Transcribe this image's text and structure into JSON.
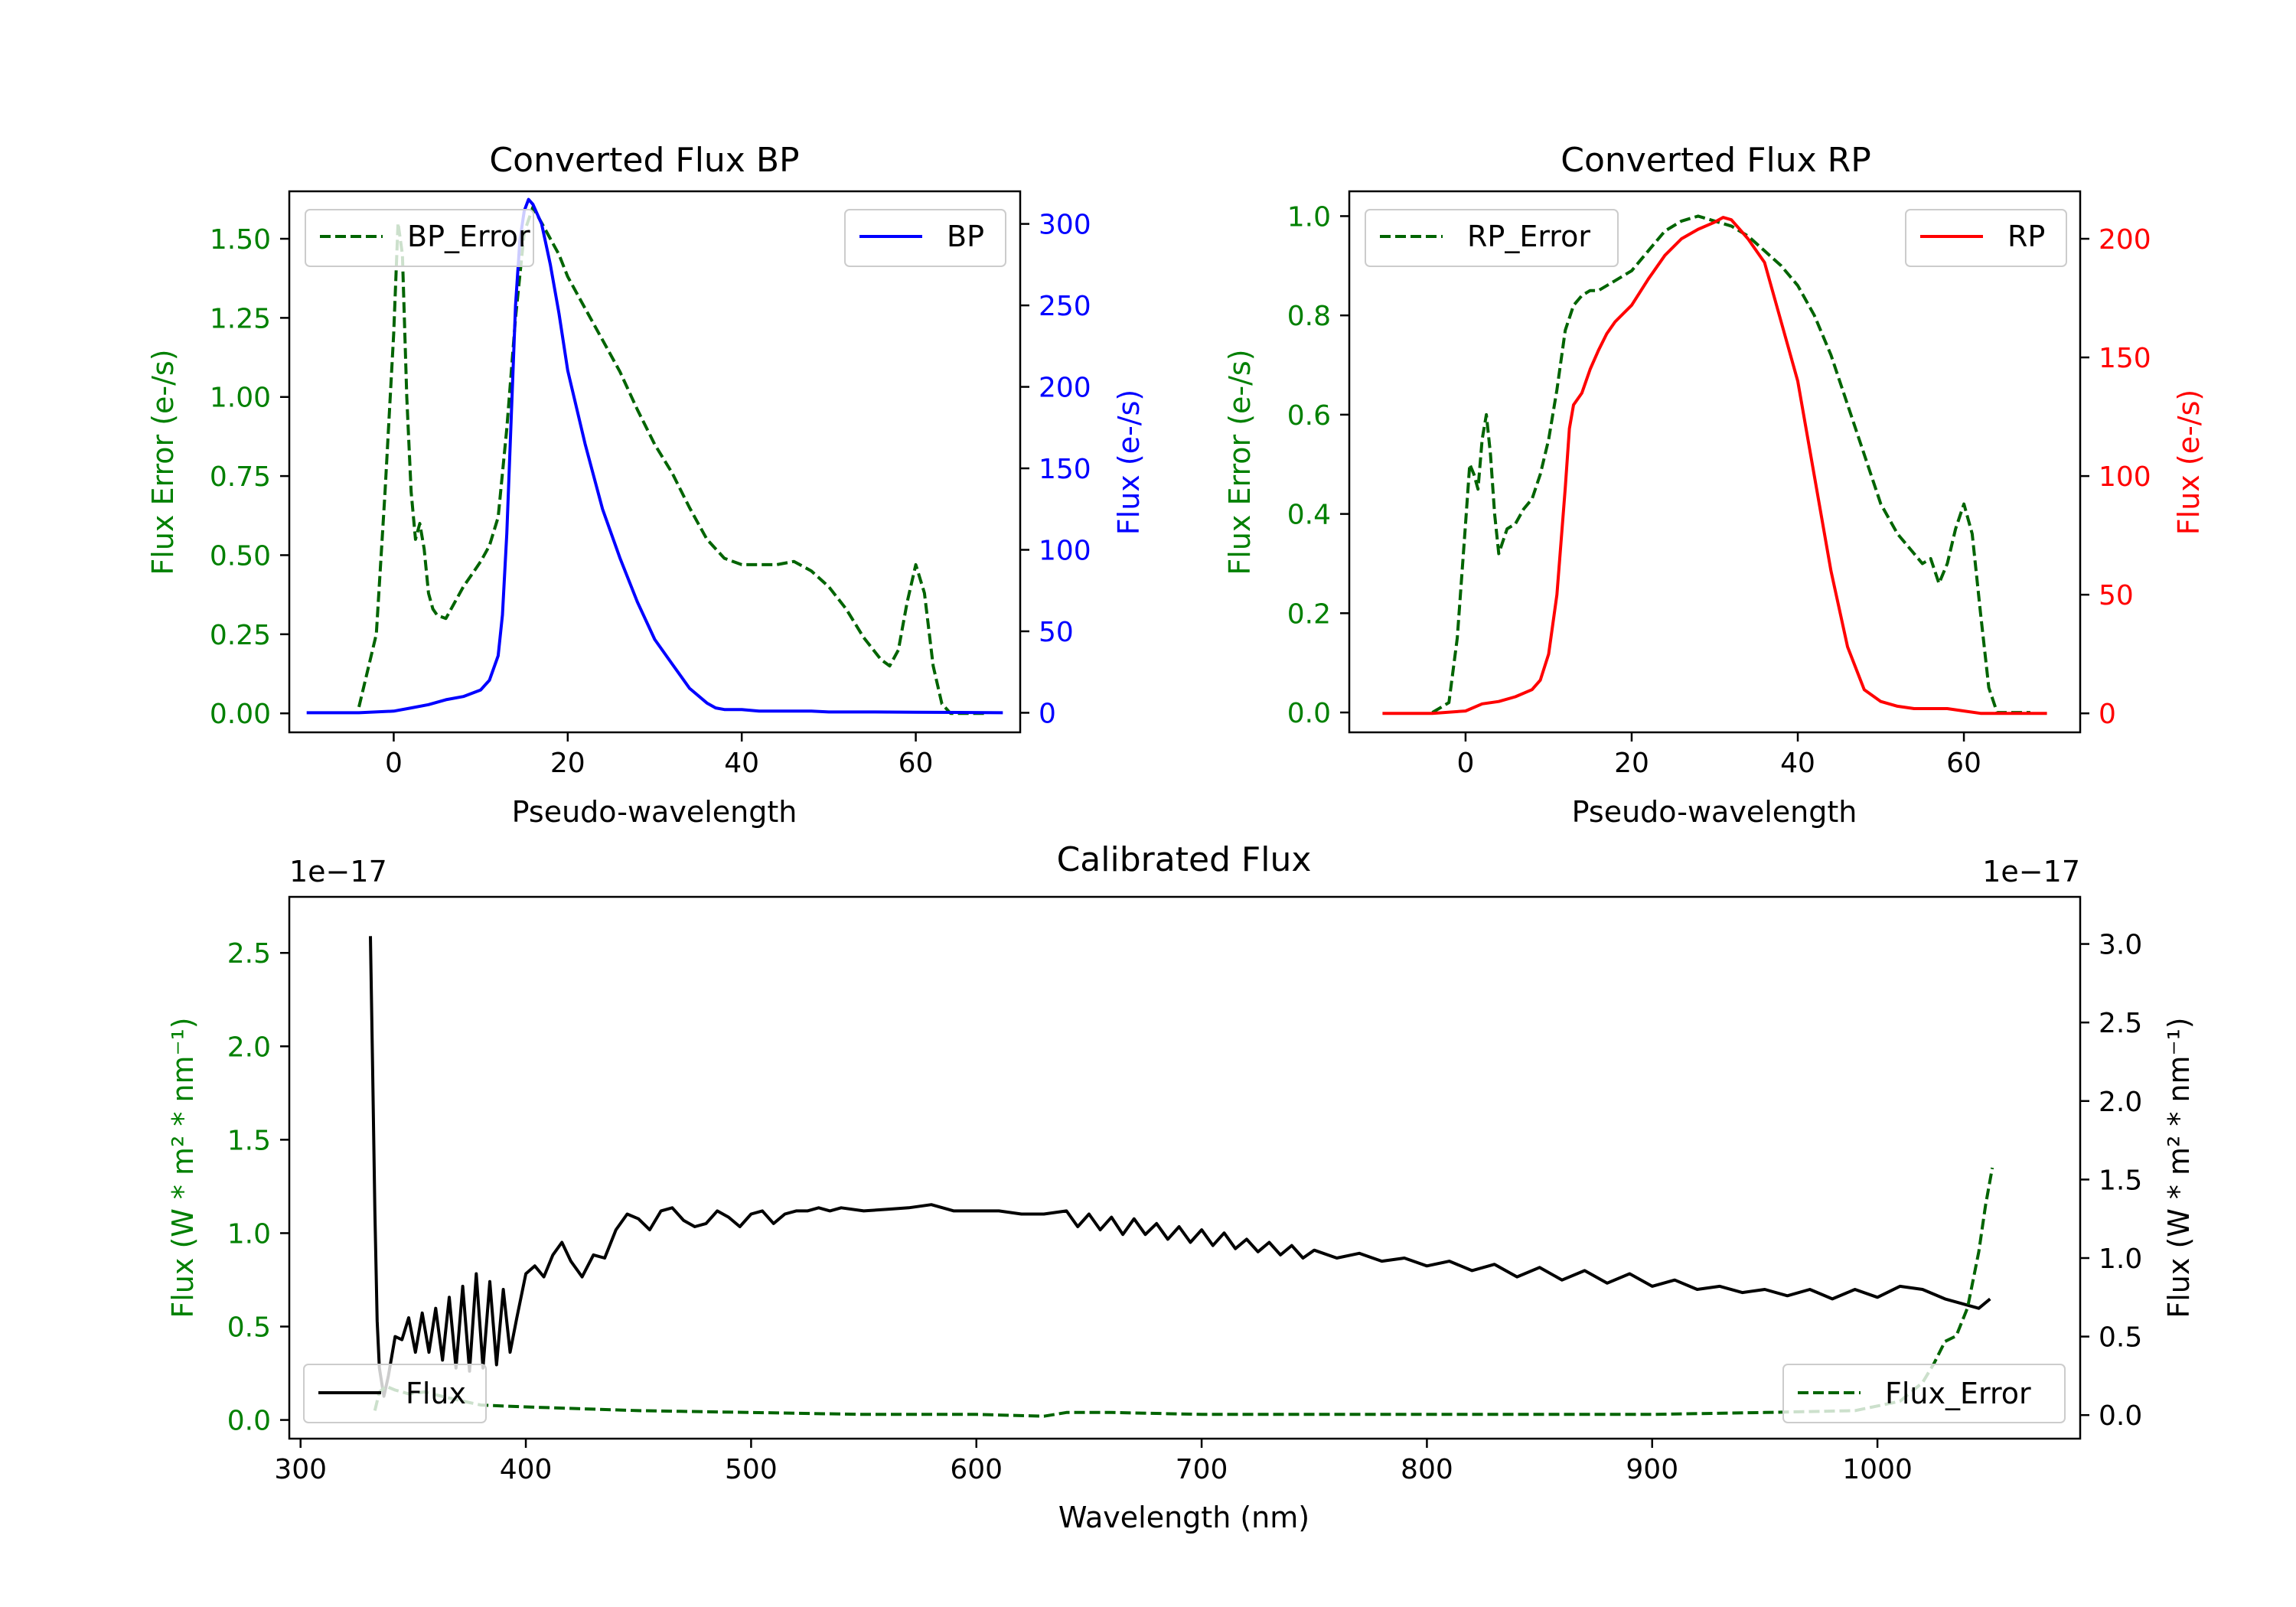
{
  "chart_data": [
    {
      "id": "bp",
      "type": "line",
      "title": "Converted Flux BP",
      "xlabel": "Pseudo-wavelength",
      "ylabel_left": "Flux Error (e-/s)",
      "ylabel_right": "Flux (e-/s)",
      "xlim": [
        -12,
        72
      ],
      "ylim_left": [
        -0.06,
        1.65
      ],
      "ylim_right": [
        -12,
        320
      ],
      "xticks": [
        "0",
        "20",
        "40",
        "60"
      ],
      "xtick_values": [
        0,
        20,
        40,
        60
      ],
      "yticks_left": [
        "0.00",
        "0.25",
        "0.50",
        "0.75",
        "1.00",
        "1.25",
        "1.50"
      ],
      "yticks_left_values": [
        0,
        0.25,
        0.5,
        0.75,
        1.0,
        1.25,
        1.5
      ],
      "yticks_right": [
        "0",
        "50",
        "100",
        "150",
        "200",
        "250",
        "300"
      ],
      "yticks_right_values": [
        0,
        50,
        100,
        150,
        200,
        250,
        300
      ],
      "colors": {
        "left_axis": "#008000",
        "right_axis": "#0000ff"
      },
      "legend_left": {
        "label": "BP_Error",
        "position": "upper left"
      },
      "legend_right": {
        "label": "BP",
        "position": "upper right"
      },
      "series": [
        {
          "name": "BP_Error",
          "axis": "left",
          "color": "#006400",
          "dash": true,
          "x": [
            -4,
            -2,
            -1,
            0,
            0.5,
            1,
            1.5,
            2,
            2.5,
            3,
            3.5,
            4,
            4.5,
            5,
            6,
            7,
            8,
            9,
            10,
            11,
            12,
            13,
            14,
            15,
            16,
            17,
            18,
            19,
            20,
            22,
            24,
            26,
            28,
            30,
            32,
            34,
            36,
            38,
            40,
            42,
            44,
            46,
            48,
            50,
            52,
            54,
            56,
            57,
            58,
            59,
            60,
            61,
            62,
            63,
            64,
            66,
            68
          ],
          "y": [
            0.02,
            0.25,
            0.7,
            1.2,
            1.55,
            1.45,
            1.0,
            0.7,
            0.55,
            0.6,
            0.52,
            0.38,
            0.33,
            0.31,
            0.3,
            0.35,
            0.4,
            0.44,
            0.48,
            0.53,
            0.62,
            0.9,
            1.25,
            1.52,
            1.6,
            1.55,
            1.5,
            1.45,
            1.38,
            1.28,
            1.18,
            1.08,
            0.96,
            0.85,
            0.76,
            0.65,
            0.55,
            0.49,
            0.47,
            0.47,
            0.47,
            0.48,
            0.45,
            0.4,
            0.33,
            0.24,
            0.17,
            0.15,
            0.2,
            0.35,
            0.47,
            0.38,
            0.15,
            0.03,
            0.0,
            0.0,
            0.0
          ]
        },
        {
          "name": "BP",
          "axis": "right",
          "color": "#0000ff",
          "dash": false,
          "x": [
            -10,
            -4,
            0,
            2,
            4,
            6,
            8,
            10,
            11,
            12,
            12.5,
            13,
            13.5,
            14,
            14.5,
            15,
            15.5,
            16,
            17,
            18,
            19,
            20,
            22,
            24,
            26,
            28,
            30,
            32,
            34,
            36,
            37,
            38,
            40,
            42,
            44,
            46,
            48,
            50,
            55,
            60,
            65,
            70
          ],
          "y": [
            0,
            0,
            1,
            3,
            5,
            8,
            10,
            14,
            20,
            35,
            60,
            110,
            180,
            250,
            290,
            308,
            315,
            312,
            300,
            275,
            245,
            210,
            165,
            125,
            95,
            68,
            45,
            30,
            15,
            6,
            3,
            2,
            2,
            1,
            1,
            1,
            1,
            0.5,
            0.5,
            0.3,
            0.2,
            0
          ]
        }
      ]
    },
    {
      "id": "rp",
      "type": "line",
      "title": "Converted Flux RP",
      "xlabel": "Pseudo-wavelength",
      "ylabel_left": "Flux Error (e-/s)",
      "ylabel_right": "Flux (e-/s)",
      "xlim": [
        -14,
        74
      ],
      "ylim_left": [
        -0.04,
        1.05
      ],
      "ylim_right": [
        -8,
        220
      ],
      "xticks": [
        "0",
        "20",
        "40",
        "60"
      ],
      "xtick_values": [
        0,
        20,
        40,
        60
      ],
      "yticks_left": [
        "0.0",
        "0.2",
        "0.4",
        "0.6",
        "0.8",
        "1.0"
      ],
      "yticks_left_values": [
        0,
        0.2,
        0.4,
        0.6,
        0.8,
        1.0
      ],
      "yticks_right": [
        "0",
        "50",
        "100",
        "150",
        "200"
      ],
      "yticks_right_values": [
        0,
        50,
        100,
        150,
        200
      ],
      "colors": {
        "left_axis": "#008000",
        "right_axis": "#ff0000"
      },
      "legend_left": {
        "label": "RP_Error",
        "position": "upper left"
      },
      "legend_right": {
        "label": "RP",
        "position": "upper right"
      },
      "series": [
        {
          "name": "RP_Error",
          "axis": "left",
          "color": "#006400",
          "dash": true,
          "x": [
            -4,
            -2,
            -1,
            0,
            0.5,
            1,
            1.5,
            2,
            2.5,
            3,
            3.5,
            4,
            5,
            6,
            7,
            8,
            9,
            10,
            11,
            12,
            13,
            14,
            15,
            16,
            18,
            20,
            22,
            24,
            26,
            28,
            30,
            32,
            34,
            36,
            38,
            40,
            42,
            44,
            46,
            48,
            50,
            52,
            54,
            55,
            56,
            57,
            58,
            59,
            60,
            61,
            62,
            63,
            64,
            66,
            68
          ],
          "y": [
            0.0,
            0.02,
            0.15,
            0.38,
            0.5,
            0.48,
            0.45,
            0.55,
            0.6,
            0.52,
            0.4,
            0.32,
            0.37,
            0.38,
            0.41,
            0.43,
            0.48,
            0.55,
            0.65,
            0.77,
            0.82,
            0.84,
            0.85,
            0.85,
            0.87,
            0.89,
            0.93,
            0.97,
            0.99,
            1.0,
            0.99,
            0.98,
            0.96,
            0.93,
            0.9,
            0.86,
            0.8,
            0.72,
            0.62,
            0.52,
            0.42,
            0.36,
            0.32,
            0.3,
            0.31,
            0.26,
            0.3,
            0.37,
            0.42,
            0.36,
            0.2,
            0.05,
            0.0,
            0.0,
            0.0
          ]
        },
        {
          "name": "RP",
          "axis": "right",
          "color": "#ff0000",
          "dash": false,
          "x": [
            -10,
            -4,
            0,
            2,
            4,
            6,
            8,
            9,
            10,
            11,
            12,
            12.5,
            13,
            14,
            15,
            16,
            17,
            18,
            20,
            22,
            24,
            26,
            28,
            30,
            31,
            32,
            33,
            34,
            36,
            38,
            40,
            42,
            44,
            46,
            48,
            50,
            52,
            54,
            56,
            58,
            60,
            62,
            65,
            70
          ],
          "y": [
            0,
            0,
            1,
            4,
            5,
            7,
            10,
            14,
            25,
            50,
            95,
            120,
            130,
            135,
            145,
            153,
            160,
            165,
            172,
            183,
            193,
            200,
            204,
            207,
            209,
            208,
            204,
            200,
            190,
            165,
            140,
            100,
            60,
            28,
            10,
            5,
            3,
            2,
            2,
            2,
            1,
            0,
            0,
            0
          ]
        }
      ]
    },
    {
      "id": "cal",
      "type": "line",
      "title": "Calibrated Flux",
      "xlabel": "Wavelength (nm)",
      "ylabel_left": "Flux (W * m² * nm⁻¹)",
      "ylabel_right": "Flux (W * m² * nm⁻¹)",
      "offset_left": "1e−17",
      "offset_right": "1e−17",
      "xlim": [
        295,
        1090
      ],
      "ylim_left": [
        -0.1,
        2.8
      ],
      "ylim_right": [
        -0.15,
        3.3
      ],
      "xticks": [
        "300",
        "400",
        "500",
        "600",
        "700",
        "800",
        "900",
        "1000"
      ],
      "xtick_values": [
        300,
        400,
        500,
        600,
        700,
        800,
        900,
        1000
      ],
      "yticks_left": [
        "0.0",
        "0.5",
        "1.0",
        "1.5",
        "2.0",
        "2.5"
      ],
      "yticks_left_values": [
        0,
        0.5,
        1.0,
        1.5,
        2.0,
        2.5
      ],
      "yticks_right": [
        "0.0",
        "0.5",
        "1.0",
        "1.5",
        "2.0",
        "2.5",
        "3.0"
      ],
      "yticks_right_values": [
        0,
        0.5,
        1.0,
        1.5,
        2.0,
        2.5,
        3.0
      ],
      "colors": {
        "left_axis": "#008000",
        "right_axis": "#000000"
      },
      "legend_left": {
        "label": "Flux",
        "position": "lower left"
      },
      "legend_right": {
        "label": "Flux_Error",
        "position": "lower right"
      },
      "series": [
        {
          "name": "Flux",
          "axis": "right",
          "color": "#000000",
          "dash": false,
          "x": [
            331,
            332,
            333,
            334,
            335,
            337,
            339,
            342,
            345,
            348,
            351,
            354,
            357,
            360,
            363,
            366,
            369,
            372,
            375,
            378,
            381,
            384,
            387,
            390,
            393,
            396,
            400,
            404,
            408,
            412,
            416,
            420,
            425,
            430,
            435,
            440,
            445,
            450,
            455,
            460,
            465,
            470,
            475,
            480,
            485,
            490,
            495,
            500,
            505,
            510,
            515,
            520,
            525,
            530,
            535,
            540,
            550,
            560,
            570,
            580,
            590,
            600,
            610,
            620,
            630,
            640,
            645,
            650,
            655,
            660,
            665,
            670,
            675,
            680,
            685,
            690,
            695,
            700,
            705,
            710,
            715,
            720,
            725,
            730,
            735,
            740,
            745,
            750,
            760,
            770,
            780,
            790,
            800,
            810,
            820,
            830,
            840,
            850,
            860,
            870,
            880,
            890,
            900,
            910,
            920,
            930,
            940,
            950,
            960,
            970,
            980,
            990,
            1000,
            1010,
            1020,
            1030,
            1040,
            1045,
            1050
          ],
          "y": [
            3.05,
            2.2,
            1.3,
            0.6,
            0.3,
            0.12,
            0.25,
            0.5,
            0.48,
            0.62,
            0.4,
            0.65,
            0.4,
            0.68,
            0.35,
            0.75,
            0.3,
            0.82,
            0.28,
            0.9,
            0.3,
            0.85,
            0.32,
            0.8,
            0.4,
            0.62,
            0.9,
            0.95,
            0.88,
            1.02,
            1.1,
            0.98,
            0.88,
            1.02,
            1.0,
            1.18,
            1.28,
            1.25,
            1.18,
            1.3,
            1.32,
            1.24,
            1.2,
            1.22,
            1.3,
            1.26,
            1.2,
            1.28,
            1.3,
            1.22,
            1.28,
            1.3,
            1.3,
            1.32,
            1.3,
            1.32,
            1.3,
            1.31,
            1.32,
            1.34,
            1.3,
            1.3,
            1.3,
            1.28,
            1.28,
            1.3,
            1.2,
            1.28,
            1.18,
            1.26,
            1.15,
            1.25,
            1.15,
            1.22,
            1.12,
            1.2,
            1.1,
            1.18,
            1.08,
            1.16,
            1.06,
            1.12,
            1.04,
            1.1,
            1.02,
            1.08,
            1.0,
            1.05,
            1.0,
            1.03,
            0.98,
            1.0,
            0.95,
            0.98,
            0.92,
            0.96,
            0.88,
            0.94,
            0.86,
            0.92,
            0.84,
            0.9,
            0.82,
            0.86,
            0.8,
            0.82,
            0.78,
            0.8,
            0.76,
            0.8,
            0.74,
            0.8,
            0.75,
            0.82,
            0.8,
            0.74,
            0.7,
            0.68,
            0.74
          ]
        },
        {
          "name": "Flux_Error",
          "axis": "left",
          "color": "#006400",
          "dash": true,
          "x": [
            333,
            335,
            338,
            342,
            348,
            355,
            365,
            380,
            400,
            450,
            500,
            550,
            600,
            630,
            640,
            660,
            700,
            750,
            800,
            850,
            900,
            950,
            990,
            1010,
            1015,
            1020,
            1025,
            1030,
            1035,
            1040,
            1045,
            1048,
            1051
          ],
          "y": [
            0.05,
            0.15,
            0.18,
            0.16,
            0.14,
            0.15,
            0.12,
            0.08,
            0.07,
            0.05,
            0.04,
            0.03,
            0.03,
            0.02,
            0.04,
            0.04,
            0.03,
            0.03,
            0.03,
            0.03,
            0.03,
            0.04,
            0.05,
            0.1,
            0.15,
            0.2,
            0.3,
            0.42,
            0.45,
            0.6,
            0.9,
            1.15,
            1.35
          ]
        }
      ]
    }
  ]
}
